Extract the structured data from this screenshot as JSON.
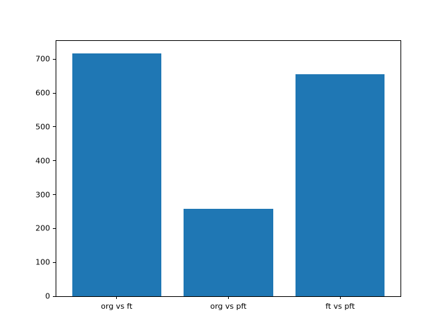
{
  "figure": {
    "background": "#ffffff",
    "axis_color": "#000000",
    "text_color": "#000000"
  },
  "chart_data": {
    "type": "bar",
    "title": "",
    "xlabel": "",
    "ylabel": "",
    "categories": [
      "org vs ft",
      "org vs pft",
      "ft vs pft"
    ],
    "values": [
      718,
      258,
      656
    ],
    "bar_color": "#1f77b4",
    "ylim": [
      0,
      754
    ],
    "yticks": [
      0,
      100,
      200,
      300,
      400,
      500,
      600,
      700
    ],
    "grid": false,
    "legend": "none"
  }
}
